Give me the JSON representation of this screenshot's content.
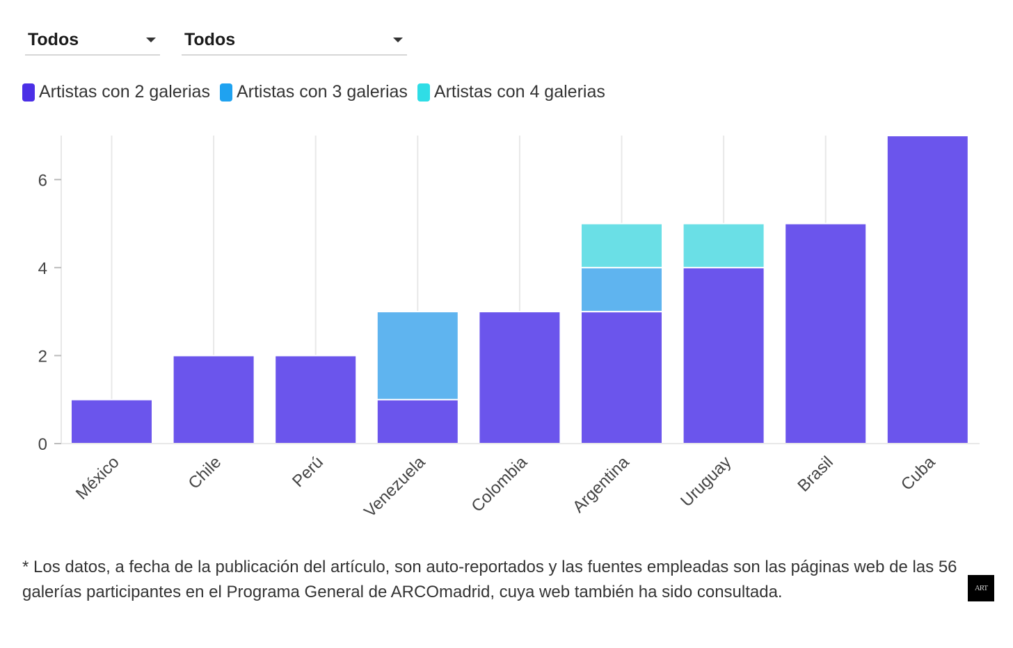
{
  "filters": [
    {
      "selected": "Todos"
    },
    {
      "selected": "Todos"
    }
  ],
  "colors": {
    "series_2": "#6b55ec",
    "series_3": "#5fb4ef",
    "series_4": "#6adfe6",
    "legend_2": "#4b2fe6",
    "legend_3": "#1fa2f0",
    "legend_4": "#2fdde6",
    "grid": "#e8e8e8"
  },
  "chart_data": {
    "type": "bar",
    "stacked": true,
    "categories": [
      "México",
      "Chile",
      "Perú",
      "Venezuela",
      "Colombia",
      "Argentina",
      "Uruguay",
      "Brasil",
      "Cuba"
    ],
    "series": [
      {
        "name": "Artistas con 2 galerias",
        "values": [
          1,
          2,
          2,
          1,
          3,
          3,
          4,
          5,
          7
        ]
      },
      {
        "name": "Artistas con 3 galerias",
        "values": [
          0,
          0,
          0,
          2,
          0,
          1,
          0,
          0,
          0
        ]
      },
      {
        "name": "Artistas con 4 galerias",
        "values": [
          0,
          0,
          0,
          0,
          0,
          1,
          1,
          0,
          0
        ]
      }
    ],
    "ylim": [
      0,
      7
    ],
    "yticks": [
      "0",
      "2",
      "4",
      "6"
    ],
    "title": "",
    "xlabel": "",
    "ylabel": "",
    "legend_position": "top-left"
  },
  "footnote": "* Los datos, a fecha de la publicación del artículo, son auto-reportados y las fuentes empleadas son las páginas web de las 56 galerías participantes en el Programa General de ARCOmadrid, cuya web también ha sido consultada.",
  "logo_text": "ART"
}
